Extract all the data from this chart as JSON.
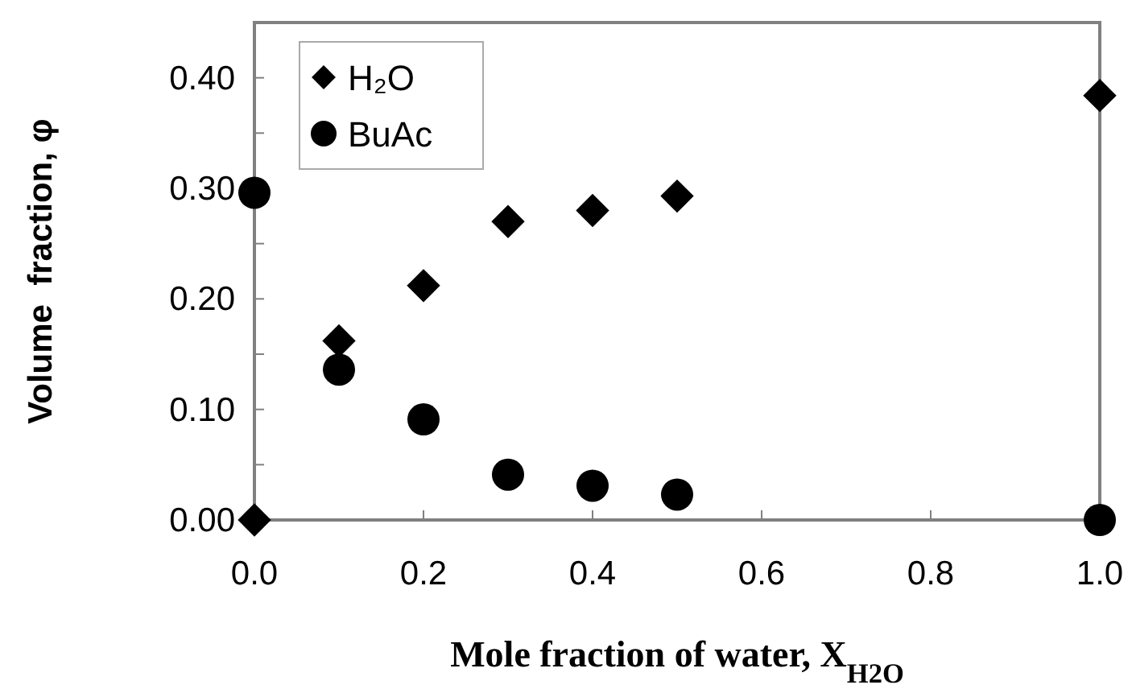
{
  "chart_data": {
    "type": "scatter",
    "xlabel": "Mole fraction of water, X$_{H2O}$",
    "ylabel": "Volume  fraction, φ",
    "xlim": [
      0,
      1
    ],
    "xticks": [
      {
        "value": 0,
        "label": "0.0"
      },
      {
        "value": 0.2,
        "label": "0.2"
      },
      {
        "value": 0.4,
        "label": "0.4"
      },
      {
        "value": 0.6,
        "label": "0.6"
      },
      {
        "value": 0.8,
        "label": "0.8"
      },
      {
        "value": 1,
        "label": "1.0"
      }
    ],
    "ylim": [
      0,
      0.45
    ],
    "yticks": [
      {
        "value": 0,
        "label": "0.00"
      },
      {
        "value": 0.05,
        "label": null
      },
      {
        "value": 0.1,
        "label": "0.10"
      },
      {
        "value": 0.15,
        "label": null
      },
      {
        "value": 0.2,
        "label": "0.20"
      },
      {
        "value": 0.25,
        "label": null
      },
      {
        "value": 0.3,
        "label": "0.30"
      },
      {
        "value": 0.35,
        "label": null
      },
      {
        "value": 0.4,
        "label": "0.40"
      }
    ],
    "grid": false,
    "legend": "top left",
    "series": [
      {
        "name": "H₂O",
        "color": "#000000",
        "marker": "diamond",
        "x": [
          0,
          0.1,
          0.2,
          0.3,
          0.4,
          0.5,
          1
        ],
        "values": [
          0,
          0.162,
          0.212,
          0.27,
          0.28,
          0.293,
          0.384
        ]
      },
      {
        "name": "BuAc",
        "color": "#000000",
        "marker": "circle",
        "x": [
          0,
          0.1,
          0.2,
          0.3,
          0.4,
          0.5,
          1
        ],
        "values": [
          0.296,
          0.136,
          0.091,
          0.041,
          0.031,
          0.023,
          0
        ]
      }
    ]
  }
}
